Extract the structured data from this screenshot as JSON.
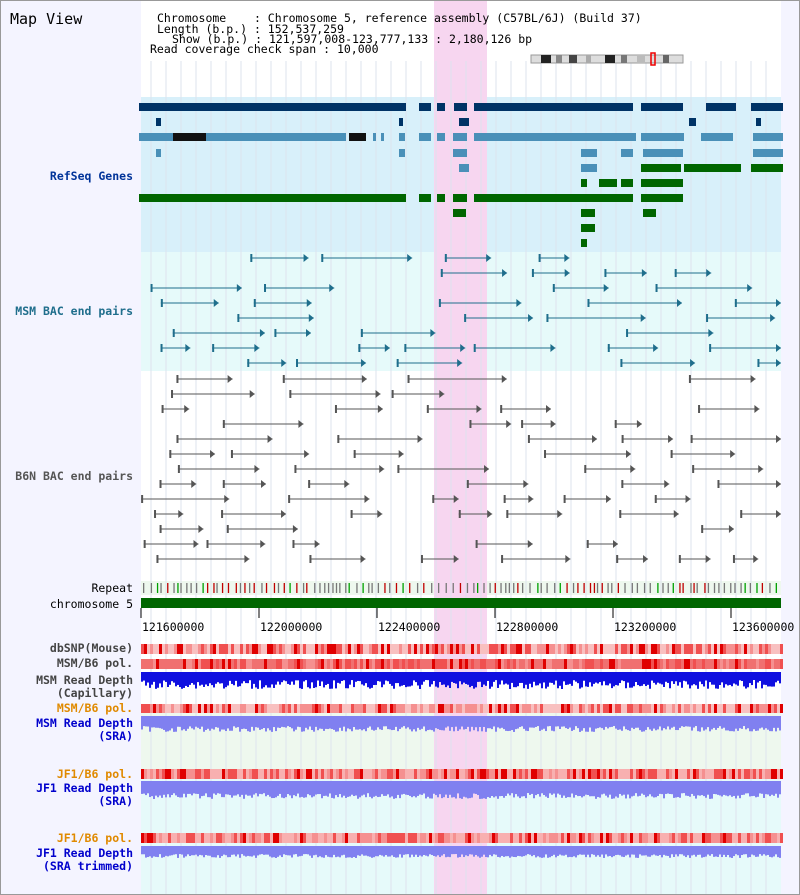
{
  "app_title": "Map View",
  "info": {
    "chromosome_label": "Chromosome",
    "chromosome_value": "Chromosome 5, reference assembly (C57BL/6J) (Build 37)",
    "length_label": "Length (b.p.)",
    "length_value": "152,537,259",
    "show_label": "Show (b.p.)",
    "show_value": "121,597,008-123,777,133 : 2,180,126 bp",
    "read_coverage_label": "Read coverage check span",
    "read_coverage_value": "10,000"
  },
  "tracks": {
    "refseq": "RefSeq Genes",
    "msm_bac": "MSM BAC end pairs",
    "b6n_bac": "B6N BAC end pairs",
    "repeat": "Repeat",
    "chromosome": "chromosome 5",
    "dbsnp": "dbSNP(Mouse)",
    "msm_b6_pol_1": "MSM/B6 pol.",
    "msm_depth_cap_1": "MSM Read Depth",
    "msm_depth_cap_2": "(Capillary)",
    "msm_b6_pol_2": "MSM/B6 pol.",
    "msm_depth_sra_1": "MSM Read Depth",
    "msm_depth_sra_2": "(SRA)",
    "jf1_b6_pol_1": "JF1/B6 pol.",
    "jf1_depth_sra_1": "JF1 Read Depth",
    "jf1_depth_sra_2": "(SRA)",
    "jf1_b6_pol_2": "JF1/B6 pol.",
    "jf1_depth_trim_1": "JF1 Read Depth",
    "jf1_depth_trim_2": "(SRA trimmed)"
  },
  "axis": {
    "ticks": [
      "121600000",
      "122000000",
      "122400000",
      "122800000",
      "123200000",
      "123600000"
    ]
  },
  "colors": {
    "refseq_dark": "#003366",
    "refseq_mid": "#4a90b8",
    "refseq_green": "#006600",
    "msm_bac": "#1f6e8c",
    "b6n_bac": "#555555",
    "highlight": "#f7d6f0",
    "chromosome": "#006600",
    "depth_cap": "#1010e0",
    "depth_sra": "#8080f0"
  }
}
